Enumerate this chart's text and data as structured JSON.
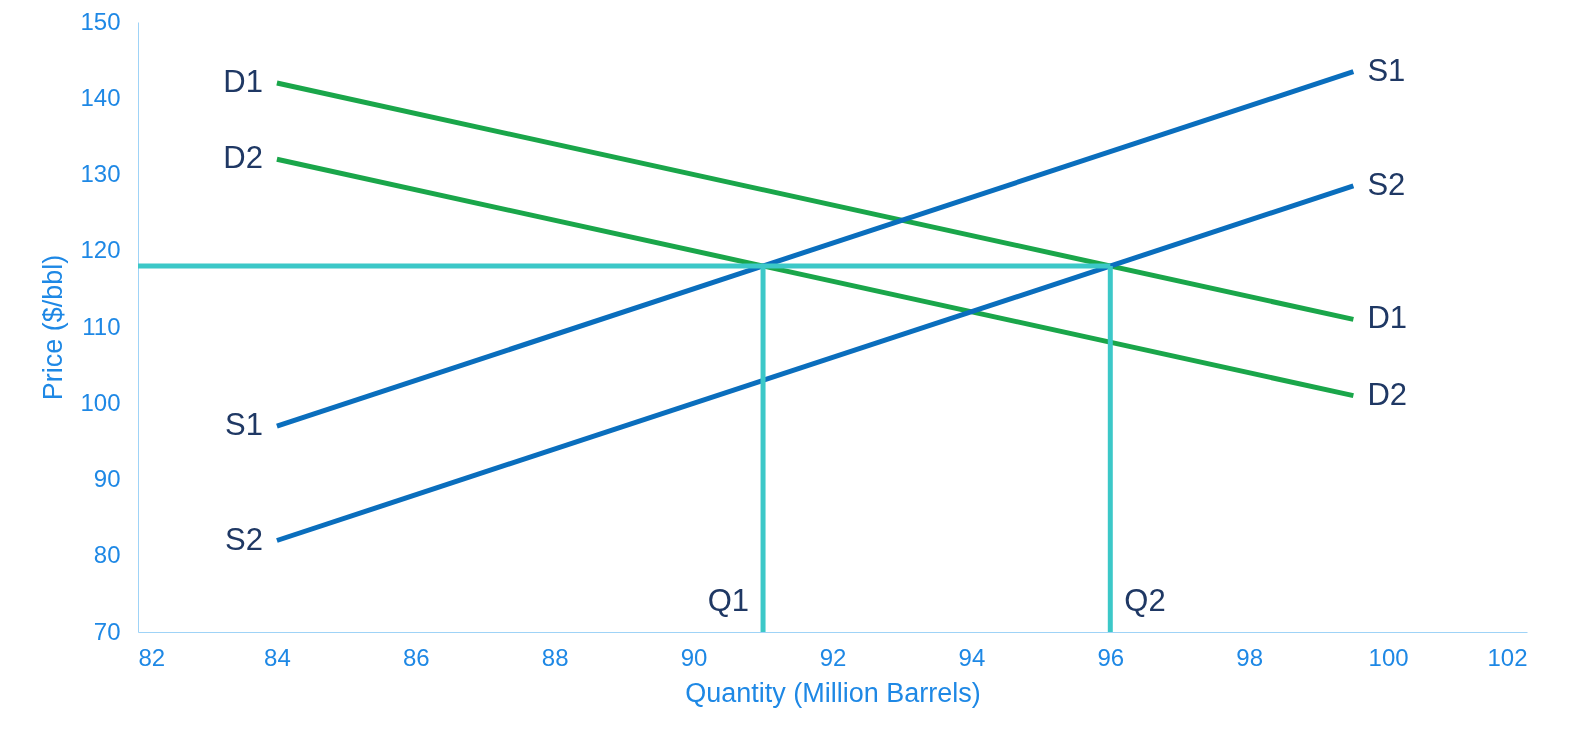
{
  "chart_data": {
    "type": "line",
    "xlabel": "Quantity (Million Barrels)",
    "ylabel": "Price ($/bbl)",
    "xlim": [
      82,
      102
    ],
    "xticks": [
      82,
      84,
      86,
      88,
      90,
      92,
      94,
      96,
      98,
      100,
      102
    ],
    "ylim": [
      70,
      150
    ],
    "yticks": [
      70,
      80,
      90,
      100,
      110,
      120,
      130,
      140,
      150
    ],
    "grid": false,
    "marker": "none",
    "line_style": "solid",
    "series": [
      {
        "color": "#1aa64a",
        "x": [
          84,
          99.5
        ],
        "values": [
          142,
          111
        ]
      },
      {
        "color": "#1aa64a",
        "x": [
          84,
          99.5
        ],
        "values": [
          132,
          101
        ]
      },
      {
        "color": "#0a6ebd",
        "x": [
          84,
          99.5
        ],
        "values": [
          97,
          143.5
        ]
      },
      {
        "color": "#0a6ebd",
        "x": [
          84,
          99.5
        ],
        "values": [
          82,
          128.5
        ]
      },
      {
        "color": "#3cc8c8",
        "x": [
          82,
          96
        ],
        "values": [
          118,
          118
        ]
      },
      {
        "color": "#3cc8c8",
        "x": [
          91,
          91
        ],
        "values": [
          70,
          118
        ]
      },
      {
        "color": "#3cc8c8",
        "x": [
          96,
          96
        ],
        "values": [
          70,
          118
        ]
      }
    ],
    "annotations": [
      {
        "text": "D1",
        "x": 84,
        "y": 142
      },
      {
        "text": "D2",
        "x": 84,
        "y": 132
      },
      {
        "text": "S1",
        "x": 84,
        "y": 97
      },
      {
        "text": "S2",
        "x": 84,
        "y": 82
      },
      {
        "text": "D1",
        "x": 99.5,
        "y": 111
      },
      {
        "text": "D2",
        "x": 99.5,
        "y": 101
      },
      {
        "text": "S1",
        "x": 99.5,
        "y": 143.5
      },
      {
        "text": "S2",
        "x": 99.5,
        "y": 128.5
      },
      {
        "text": "Q1",
        "x": 91,
        "y": 74
      },
      {
        "text": "Q2",
        "x": 96,
        "y": 74
      }
    ]
  }
}
